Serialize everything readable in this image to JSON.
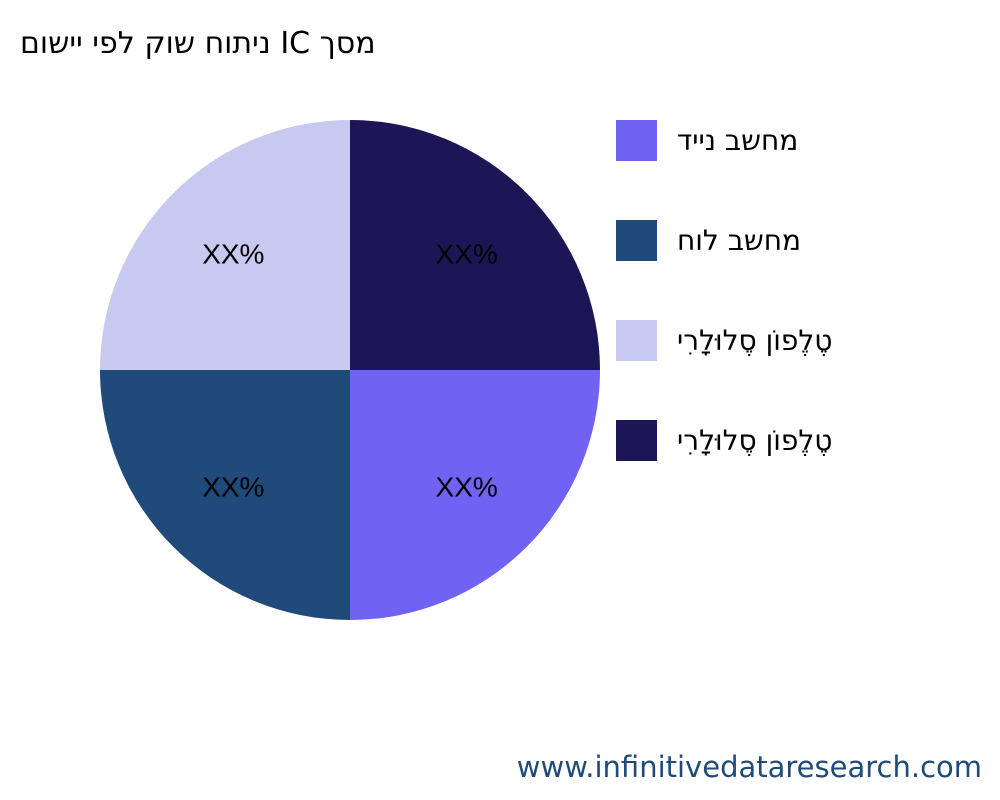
{
  "chart_data": {
    "type": "pie",
    "title": "מסך IC ניתוח שוק לפי יישום",
    "categories": [
      "מחשב נייד",
      "מחשב לוח",
      "טֶלֶפוֹן סֶלוּלָרִי",
      "טֶלֶפוֹן סֶלוּלָרִי"
    ],
    "values": [
      25,
      25,
      25,
      25
    ],
    "data_labels": [
      "XX%",
      "XX%",
      "XX%",
      "XX%"
    ],
    "colors": [
      "#7062f2",
      "#1f4a7a",
      "#c8c9f0",
      "#1c1656"
    ],
    "legend_position": "right"
  },
  "watermark": "www.infinitivedataresearch.com"
}
